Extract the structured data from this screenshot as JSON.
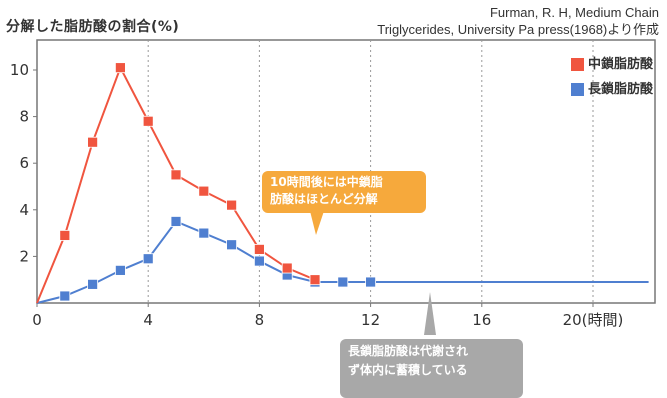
{
  "header": {
    "ylabel": "分解した脂肪酸の割合(%)",
    "source_line1": "Furman, R. H, Medium Chain",
    "source_line2": "Triglycerides, University Pa press(1968)より作成"
  },
  "chart_data": {
    "type": "line",
    "xlim": [
      0,
      22
    ],
    "ylim": [
      0,
      11
    ],
    "xticks": [
      0,
      4,
      8,
      12,
      16,
      20
    ],
    "xtick_labels": [
      "0",
      "4",
      "8",
      "12",
      "16",
      "20(時間)"
    ],
    "yticks": [
      2,
      4,
      6,
      8,
      10
    ],
    "ytick_labels": [
      "2",
      "4",
      "6",
      "8",
      "10"
    ],
    "grid": "vertical dotted",
    "legend_position": "top-right",
    "series": [
      {
        "name": "中鎖脂肪酸",
        "color": "#f0553f",
        "x": [
          0,
          1,
          2,
          3,
          4,
          5,
          6,
          7,
          8,
          9,
          10
        ],
        "y": [
          0,
          2.9,
          6.9,
          10.1,
          7.8,
          5.5,
          4.8,
          4.2,
          2.3,
          1.5,
          1.0
        ]
      },
      {
        "name": "長鎖脂肪酸",
        "color": "#4f7fd0",
        "x": [
          0,
          1,
          2,
          3,
          4,
          5,
          6,
          7,
          8,
          9,
          10,
          11,
          12,
          22
        ],
        "y": [
          0,
          0.3,
          0.8,
          1.4,
          1.9,
          3.5,
          3.0,
          2.5,
          1.8,
          1.2,
          0.9,
          0.9,
          0.9,
          0.9
        ]
      }
    ],
    "annotations": [
      {
        "line1": "10時間後には中鎖脂",
        "line2": "肪酸はほとんど分解"
      },
      {
        "line1": "長鎖脂肪酸は代謝され",
        "line2": "ず体内に蓄積している"
      }
    ]
  }
}
